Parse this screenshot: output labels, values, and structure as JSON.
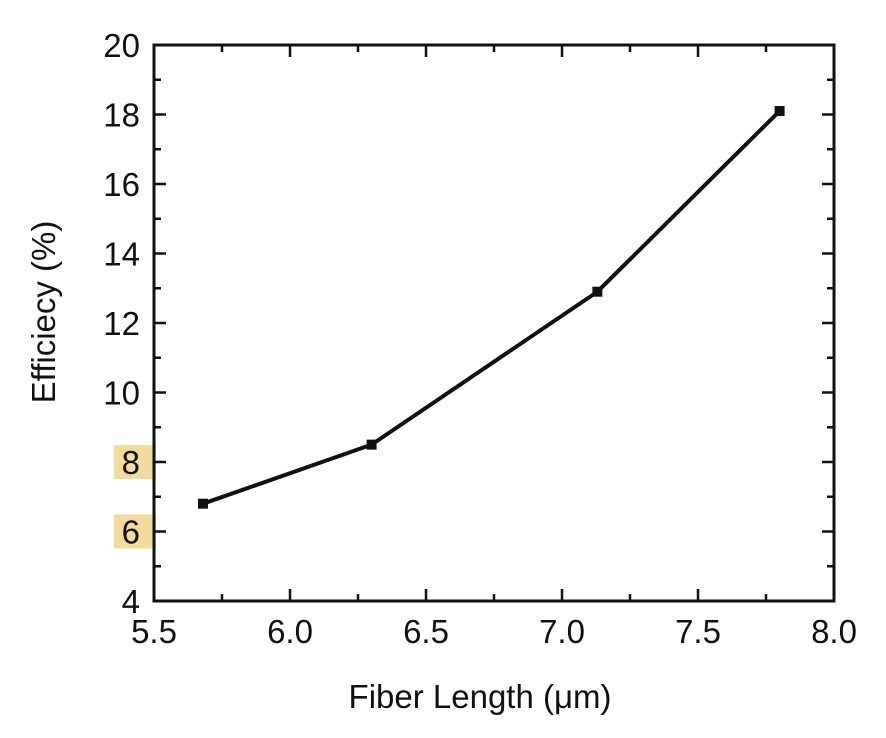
{
  "chart_data": {
    "type": "line",
    "title": "",
    "xlabel": "Fiber Length (μm)",
    "ylabel": "Efficiecy (%)",
    "xlim": [
      5.5,
      8.0
    ],
    "ylim": [
      4,
      20
    ],
    "x_ticks": [
      "5.5",
      "6.0",
      "6.5",
      "7.0",
      "7.5",
      "8.0"
    ],
    "y_ticks": [
      "4",
      "6",
      "8",
      "10",
      "12",
      "14",
      "16",
      "18",
      "20"
    ],
    "highlighted_y_ticks": [
      "6",
      "8"
    ],
    "highlight_color": "#f3dc9a",
    "grid": false,
    "marker": "square",
    "line_color": "#111111",
    "series": [
      {
        "x": [
          5.68,
          6.3,
          7.13,
          7.8
        ],
        "values": [
          6.8,
          8.5,
          12.9,
          18.1
        ]
      }
    ]
  }
}
